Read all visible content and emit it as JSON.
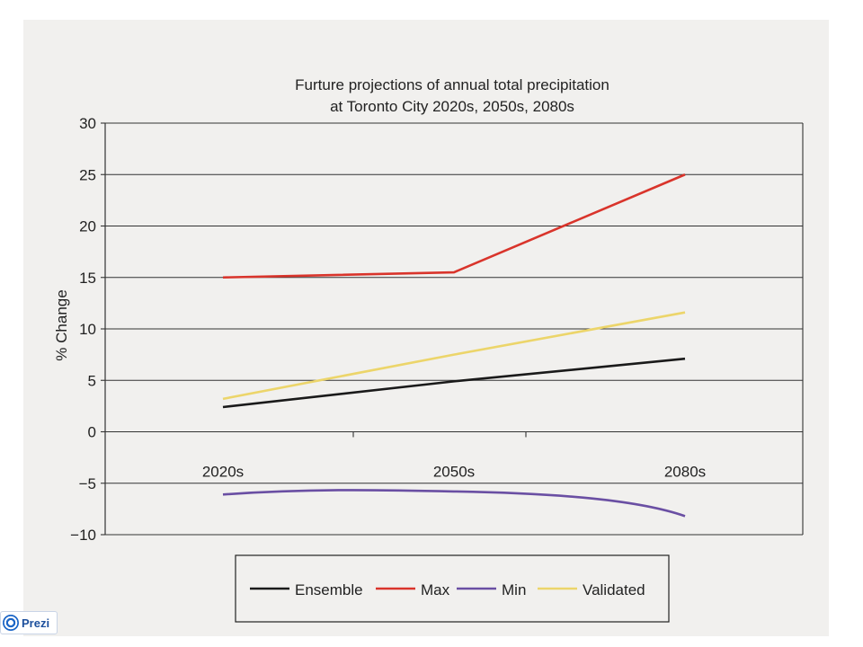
{
  "chart_data": {
    "type": "line",
    "title": "Furture projections of annual total precipitation",
    "subtitle": "at Toronto City 2020s, 2050s, 2080s",
    "xlabel": "",
    "ylabel": "% Change",
    "categories": [
      "2020s",
      "2050s",
      "2080s"
    ],
    "ylim": [
      -10,
      30
    ],
    "yticks": [
      30,
      25,
      20,
      15,
      10,
      5,
      0,
      -5,
      -10
    ],
    "ytick_labels": [
      "30",
      "25",
      "20",
      "15",
      "10",
      "5",
      "0",
      "−5",
      "−10"
    ],
    "grid": true,
    "legend_position": "bottom",
    "series": [
      {
        "name": "Ensemble",
        "values": [
          2.4,
          4.9,
          7.1
        ],
        "color": "#1a1a1a"
      },
      {
        "name": "Max",
        "values": [
          15.0,
          15.5,
          25.0
        ],
        "color": "#d9342b"
      },
      {
        "name": "Min",
        "values": [
          -6.1,
          -5.8,
          -8.2
        ],
        "color": "#6a4fa3"
      },
      {
        "name": "Validated",
        "values": [
          3.2,
          7.5,
          11.6
        ],
        "color": "#ecd56a"
      }
    ]
  },
  "badge": {
    "label": "Prezi"
  }
}
